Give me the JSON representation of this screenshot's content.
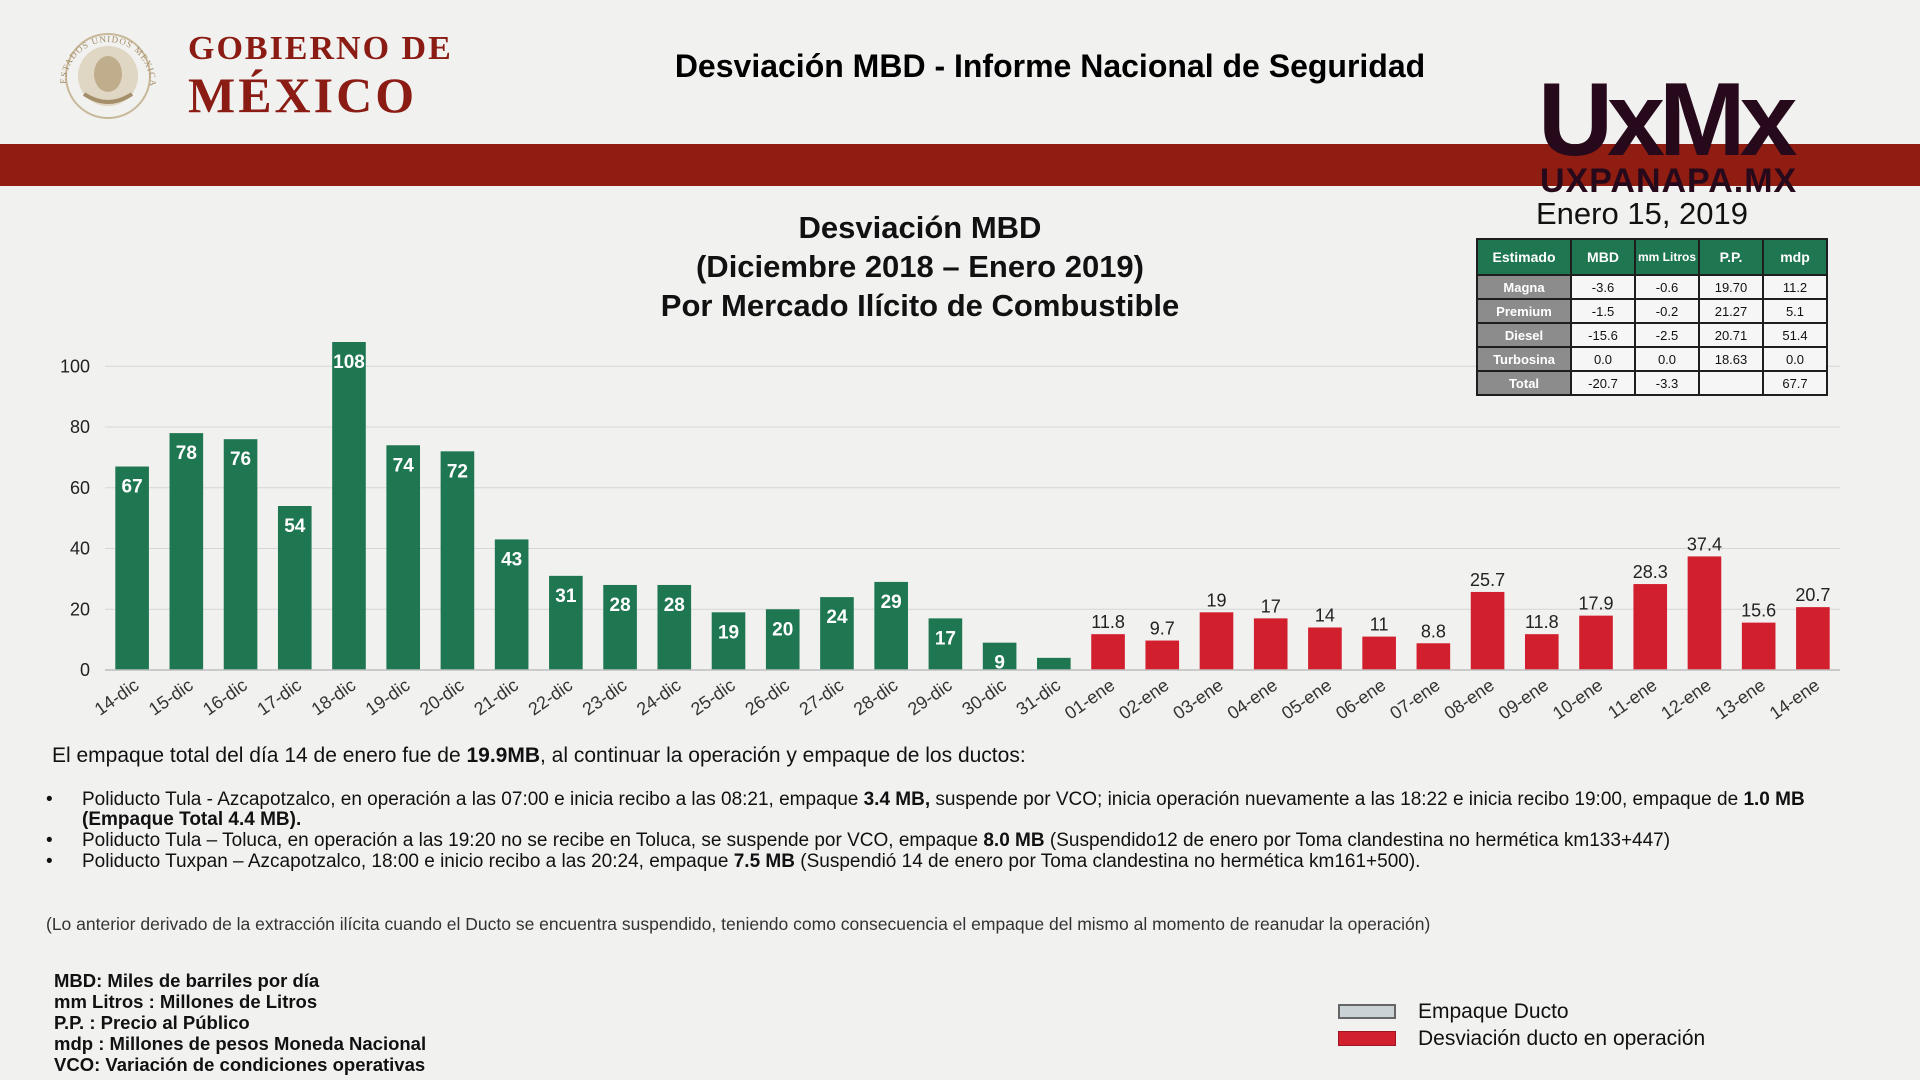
{
  "header": {
    "gov_line1": "GOBIERNO DE",
    "gov_line2": "MÉXICO",
    "seal_text": "ESTADOS UNIDOS MEXICANOS",
    "title": "Desviación MBD - Informe Nacional de Seguridad"
  },
  "watermark": {
    "logo": "UxMx",
    "url": "UXPANAPA.MX"
  },
  "date": "Enero 15, 2019",
  "colors": {
    "green": "#1f7752",
    "red": "#d21f2e",
    "band": "#8f1d12",
    "brand": "#8a1c14"
  },
  "chart_data": {
    "type": "bar",
    "title": [
      "Desviación MBD",
      "(Diciembre 2018 – Enero 2019)",
      "Por Mercado Ilícito de Combustible"
    ],
    "categories": [
      "14-dic",
      "15-dic",
      "16-dic",
      "17-dic",
      "18-dic",
      "19-dic",
      "20-dic",
      "21-dic",
      "22-dic",
      "23-dic",
      "24-dic",
      "25-dic",
      "26-dic",
      "27-dic",
      "28-dic",
      "29-dic",
      "30-dic",
      "31-dic",
      "01-ene",
      "02-ene",
      "03-ene",
      "04-ene",
      "05-ene",
      "06-ene",
      "07-ene",
      "08-ene",
      "09-ene",
      "10-ene",
      "11-ene",
      "12-ene",
      "13-ene",
      "14-ene"
    ],
    "values": [
      67,
      78,
      76,
      54,
      108,
      74,
      72,
      43,
      31,
      28,
      28,
      19,
      20,
      24,
      29,
      17,
      9,
      4,
      11.8,
      9.7,
      19,
      17,
      14,
      11,
      8.8,
      25.7,
      11.8,
      17.9,
      28.3,
      37.4,
      15.6,
      20.7
    ],
    "labels": [
      "67",
      "78",
      "76",
      "54",
      "108",
      "74",
      "72",
      "43",
      "31",
      "28",
      "28",
      "19",
      "20",
      "24",
      "29",
      "17",
      "9",
      "",
      "11.8",
      "9.7",
      "19",
      "17",
      "14",
      "11",
      "8.8",
      "25.7",
      "11.8",
      "17.9",
      "28.3",
      "37.4",
      "15.6",
      "20.7"
    ],
    "bar_colors": [
      "green",
      "green",
      "green",
      "green",
      "green",
      "green",
      "green",
      "green",
      "green",
      "green",
      "green",
      "green",
      "green",
      "green",
      "green",
      "green",
      "green",
      "green",
      "red",
      "red",
      "red",
      "red",
      "red",
      "red",
      "red",
      "red",
      "red",
      "red",
      "red",
      "red",
      "red",
      "red"
    ],
    "yticks": [
      0,
      20,
      40,
      60,
      80,
      100
    ],
    "ylim": [
      0,
      112
    ],
    "grid": true
  },
  "table": {
    "headers": [
      "Estimado",
      "MBD",
      "mm Litros",
      "P.P.",
      "mdp"
    ],
    "rows": [
      [
        "Magna",
        "-3.6",
        "-0.6",
        "19.70",
        "11.2"
      ],
      [
        "Premium",
        "-1.5",
        "-0.2",
        "21.27",
        "5.1"
      ],
      [
        "Diesel",
        "-15.6",
        "-2.5",
        "20.71",
        "51.4"
      ],
      [
        "Turbosina",
        "0.0",
        "0.0",
        "18.63",
        "0.0"
      ],
      [
        "Total",
        "-20.7",
        "-3.3",
        "",
        "67.7"
      ]
    ]
  },
  "intro": {
    "pre": "El empaque total del día 14 de enero fue de ",
    "bold": "19.9MB",
    "post": ", al continuar la operación y empaque de los ductos:"
  },
  "bullets": [
    {
      "a": "Poliducto Tula - Azcapotzalco, en operación a las 07:00 e inicia recibo a las 08:21, empaque ",
      "b": "3.4 MB,",
      "c": " suspende por VCO; inicia operación nuevamente a las 18:22 e inicia recibo 19:00, empaque de ",
      "d": "1.0 MB (Empaque Total 4.4 MB).",
      "e": ""
    },
    {
      "a": "Poliducto Tula – Toluca, en operación a las 19:20 no se recibe en Toluca, se suspende por VCO, empaque ",
      "b": "8.0 MB",
      "c": " (Suspendido12 de enero por Toma clandestina no hermética km133+447)",
      "d": "",
      "e": ""
    },
    {
      "a": "Poliducto Tuxpan – Azcapotzalco, 18:00 e inicio recibo a las 20:24, empaque ",
      "b": "7.5 MB",
      "c": " (Suspendió 14 de enero por Toma clandestina no hermética km161+500).",
      "d": "",
      "e": ""
    }
  ],
  "note": "(Lo anterior derivado de la extracción ilícita cuando el Ducto se encuentra suspendido, teniendo como consecuencia el empaque del mismo al momento de reanudar la operación)",
  "glossary": [
    "MBD: Miles de barriles por día",
    "mm Litros :  Millones de Litros",
    "P.P. : Precio al Público",
    "mdp : Millones de pesos Moneda Nacional",
    "VCO: Variación de condiciones operativas"
  ],
  "legend": [
    {
      "label": "Empaque Ducto"
    },
    {
      "label": "Desviación ducto en operación"
    }
  ]
}
